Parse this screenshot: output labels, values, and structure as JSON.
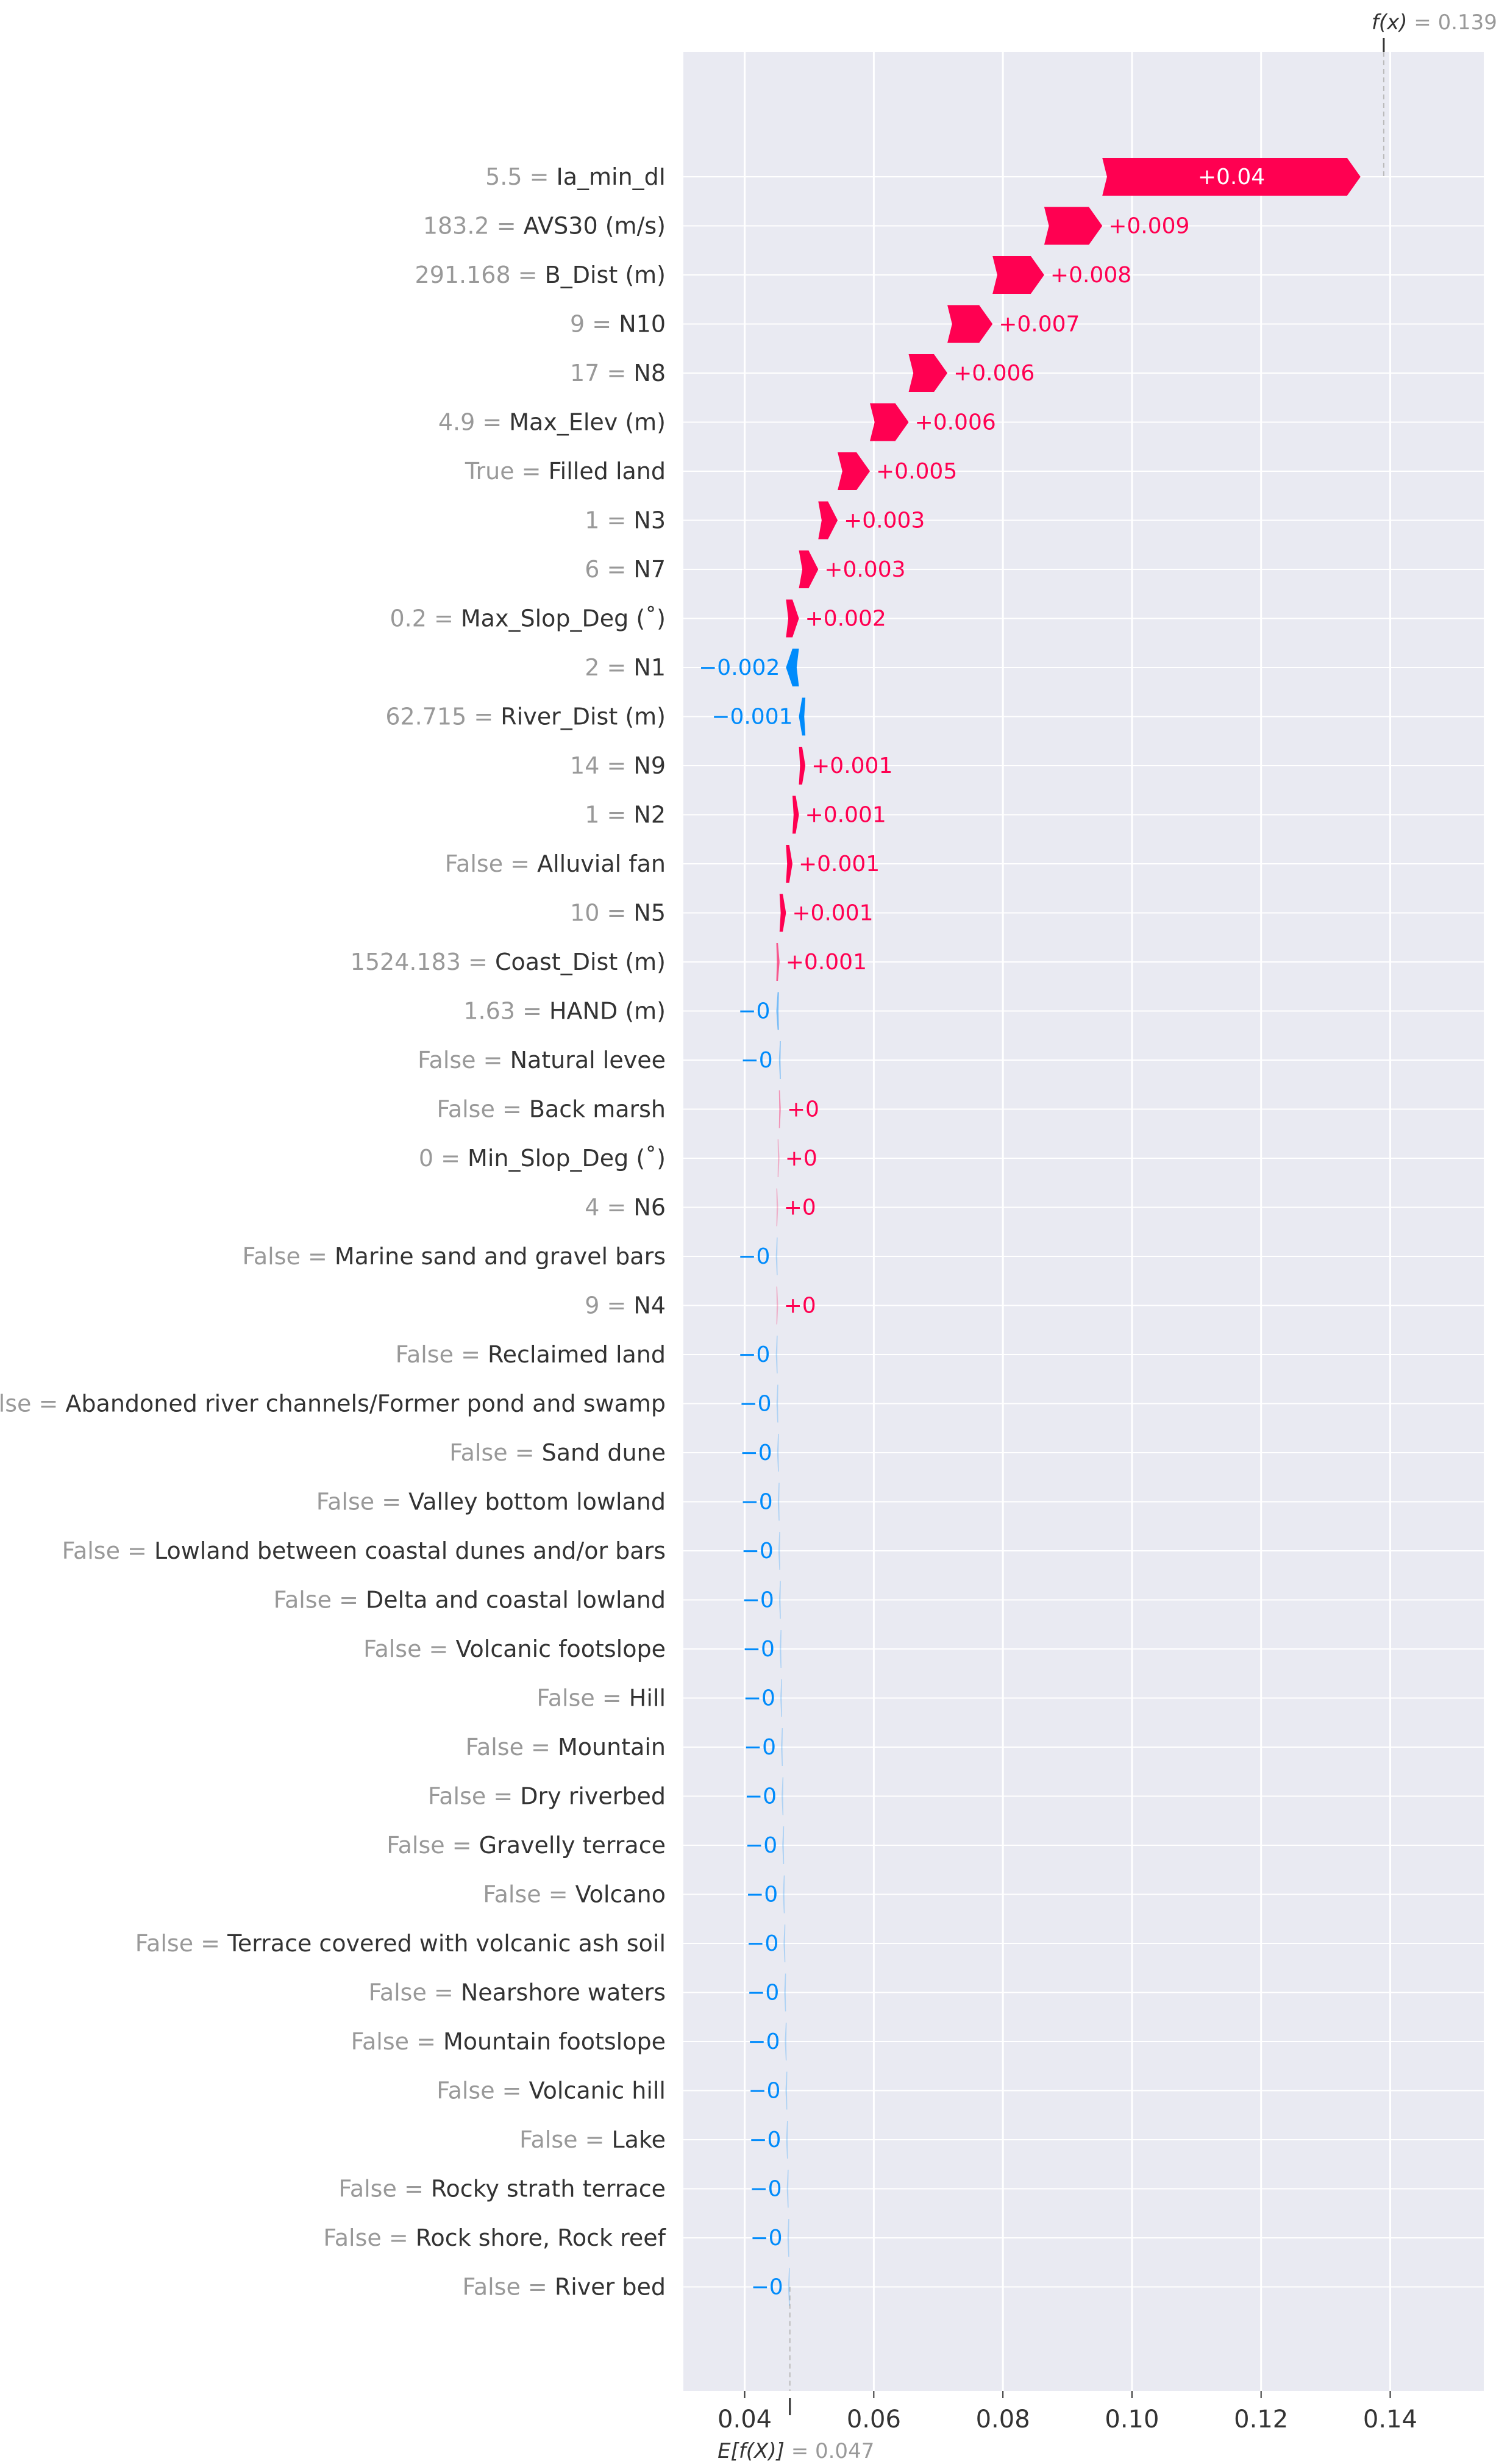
{
  "chart_data": {
    "type": "waterfall",
    "base_value_label": "E[f(X)]",
    "base_value": 0.047,
    "base_value_text": "= 0.047",
    "output_value_label": "f(x)",
    "output_value": 0.139,
    "output_value_text": "= 0.139",
    "xlim": [
      0.0305,
      0.1545
    ],
    "xticks": [
      0.04,
      0.06,
      0.08,
      0.1,
      0.12,
      0.14
    ],
    "xtick_labels": [
      "0.04",
      "0.06",
      "0.08",
      "0.10",
      "0.12",
      "0.14"
    ],
    "colors": {
      "positive": "#ff0051",
      "negative": "#008bfb",
      "plot_bg": "#e9eaf2",
      "grid": "#ffffff"
    },
    "features": [
      {
        "value": "5.5",
        "name": "Ia_min_dI",
        "contribution": 0.04,
        "label": "+0.04"
      },
      {
        "value": "183.2",
        "name": "AVS30 (m/s)",
        "contribution": 0.009,
        "label": "+0.009"
      },
      {
        "value": "291.168",
        "name": "B_Dist (m)",
        "contribution": 0.008,
        "label": "+0.008"
      },
      {
        "value": "9",
        "name": "N10",
        "contribution": 0.007,
        "label": "+0.007"
      },
      {
        "value": "17",
        "name": "N8",
        "contribution": 0.006,
        "label": "+0.006"
      },
      {
        "value": "4.9",
        "name": "Max_Elev (m)",
        "contribution": 0.006,
        "label": "+0.006"
      },
      {
        "value": "True",
        "name": "Filled land",
        "contribution": 0.005,
        "label": "+0.005"
      },
      {
        "value": "1",
        "name": "N3",
        "contribution": 0.003,
        "label": "+0.003"
      },
      {
        "value": "6",
        "name": "N7",
        "contribution": 0.003,
        "label": "+0.003"
      },
      {
        "value": "0.2",
        "name": "Max_Slop_Deg (˚)",
        "contribution": 0.002,
        "label": "+0.002"
      },
      {
        "value": "2",
        "name": "N1",
        "contribution": -0.002,
        "label": "−0.002"
      },
      {
        "value": "62.715",
        "name": "River_Dist (m)",
        "contribution": -0.001,
        "label": "−0.001"
      },
      {
        "value": "14",
        "name": "N9",
        "contribution": 0.001,
        "label": "+0.001"
      },
      {
        "value": "1",
        "name": "N2",
        "contribution": 0.001,
        "label": "+0.001"
      },
      {
        "value": "False",
        "name": "Alluvial fan",
        "contribution": 0.001,
        "label": "+0.001"
      },
      {
        "value": "10",
        "name": "N5",
        "contribution": 0.001,
        "label": "+0.001"
      },
      {
        "value": "1524.183",
        "name": "Coast_Dist (m)",
        "contribution": 0.0005,
        "label": "+0.001"
      },
      {
        "value": "1.63",
        "name": "HAND (m)",
        "contribution": -0.0004,
        "label": "−0"
      },
      {
        "value": "False",
        "name": "Natural levee",
        "contribution": -0.0003,
        "label": "−0"
      },
      {
        "value": "False",
        "name": "Back marsh",
        "contribution": 0.0003,
        "label": "+0"
      },
      {
        "value": "0",
        "name": "Min_Slop_Deg (˚)",
        "contribution": 0.0002,
        "label": "+0"
      },
      {
        "value": "4",
        "name": "N6",
        "contribution": 0.0002,
        "label": "+0"
      },
      {
        "value": "False",
        "name": "Marine sand and gravel bars",
        "contribution": -0.0002,
        "label": "−0"
      },
      {
        "value": "9",
        "name": "N4",
        "contribution": 0.0002,
        "label": "+0"
      },
      {
        "value": "False",
        "name": "Reclaimed land",
        "contribution": -0.0002,
        "label": "−0"
      },
      {
        "value": "False",
        "name": "Abandoned river channels/Former pond and swamp",
        "contribution": -0.0001,
        "label": "−0"
      },
      {
        "value": "False",
        "name": "Sand dune",
        "contribution": -0.0001,
        "label": "−0"
      },
      {
        "value": "False",
        "name": "Valley bottom lowland",
        "contribution": -0.0001,
        "label": "−0"
      },
      {
        "value": "False",
        "name": "Lowland between coastal dunes and/or bars",
        "contribution": -0.0001,
        "label": "−0"
      },
      {
        "value": "False",
        "name": "Delta and coastal lowland",
        "contribution": -0.0001,
        "label": "−0"
      },
      {
        "value": "False",
        "name": "Volcanic footslope",
        "contribution": -0.0001,
        "label": "−0"
      },
      {
        "value": "False",
        "name": "Hill",
        "contribution": -0.0001,
        "label": "−0"
      },
      {
        "value": "False",
        "name": "Mountain",
        "contribution": -0.0001,
        "label": "−0"
      },
      {
        "value": "False",
        "name": "Dry riverbed",
        "contribution": -0.0001,
        "label": "−0"
      },
      {
        "value": "False",
        "name": "Gravelly terrace",
        "contribution": -0.0001,
        "label": "−0"
      },
      {
        "value": "False",
        "name": "Volcano",
        "contribution": -0.0001,
        "label": "−0"
      },
      {
        "value": "False",
        "name": "Terrace covered with volcanic ash soil",
        "contribution": -0.0001,
        "label": "−0"
      },
      {
        "value": "False",
        "name": "Nearshore waters",
        "contribution": -0.0001,
        "label": "−0"
      },
      {
        "value": "False",
        "name": "Mountain footslope",
        "contribution": -0.0001,
        "label": "−0"
      },
      {
        "value": "False",
        "name": "Volcanic hill",
        "contribution": -0.0001,
        "label": "−0"
      },
      {
        "value": "False",
        "name": "Lake",
        "contribution": -0.0001,
        "label": "−0"
      },
      {
        "value": "False",
        "name": "Rocky strath terrace",
        "contribution": -0.0001,
        "label": "−0"
      },
      {
        "value": "False",
        "name": "Rock shore, Rock reef",
        "contribution": -0.0001,
        "label": "−0"
      },
      {
        "value": "False",
        "name": "River bed",
        "contribution": -0.0001,
        "label": "−0"
      }
    ]
  }
}
